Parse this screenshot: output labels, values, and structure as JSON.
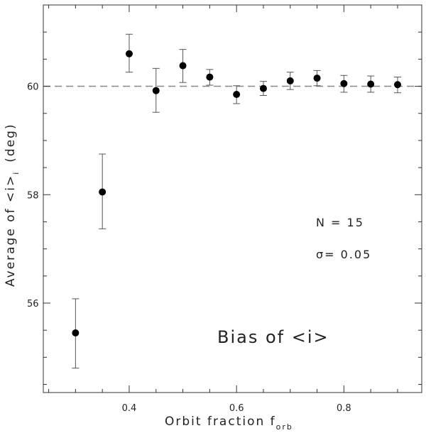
{
  "chart_data": {
    "type": "scatter",
    "title": "",
    "xlabel": "Orbit fraction f",
    "xlabel_subscript": "orb",
    "ylabel": "Average of <i>",
    "ylabel_subscript": "i",
    "ylabel_suffix": "(deg)",
    "xlim": [
      0.24,
      0.945
    ],
    "ylim": [
      54.35,
      61.5
    ],
    "x_ticks": [
      0.4,
      0.6,
      0.8
    ],
    "x_tick_labels": [
      "0.4",
      "0.6",
      "0.8"
    ],
    "y_ticks": [
      56,
      58,
      60
    ],
    "y_tick_labels": [
      "56",
      "58",
      "60"
    ],
    "reference_line": {
      "y": 60,
      "style": "dashed"
    },
    "x": [
      0.3,
      0.35,
      0.4,
      0.45,
      0.5,
      0.55,
      0.6,
      0.65,
      0.7,
      0.75,
      0.8,
      0.85,
      0.9
    ],
    "y": [
      55.45,
      58.05,
      60.6,
      59.92,
      60.38,
      60.17,
      59.85,
      59.96,
      60.1,
      60.15,
      60.05,
      60.04,
      60.03
    ],
    "err_low": [
      0.65,
      0.68,
      0.34,
      0.4,
      0.31,
      0.15,
      0.17,
      0.13,
      0.16,
      0.14,
      0.16,
      0.15,
      0.15
    ],
    "err_high": [
      0.63,
      0.7,
      0.36,
      0.41,
      0.3,
      0.14,
      0.16,
      0.13,
      0.16,
      0.14,
      0.15,
      0.15,
      0.14
    ],
    "annotations": {
      "n_text": "N  =  15",
      "sigma_text": "σ=  0.05",
      "bias_text": "Bias  of  <i>"
    },
    "grid": false
  }
}
